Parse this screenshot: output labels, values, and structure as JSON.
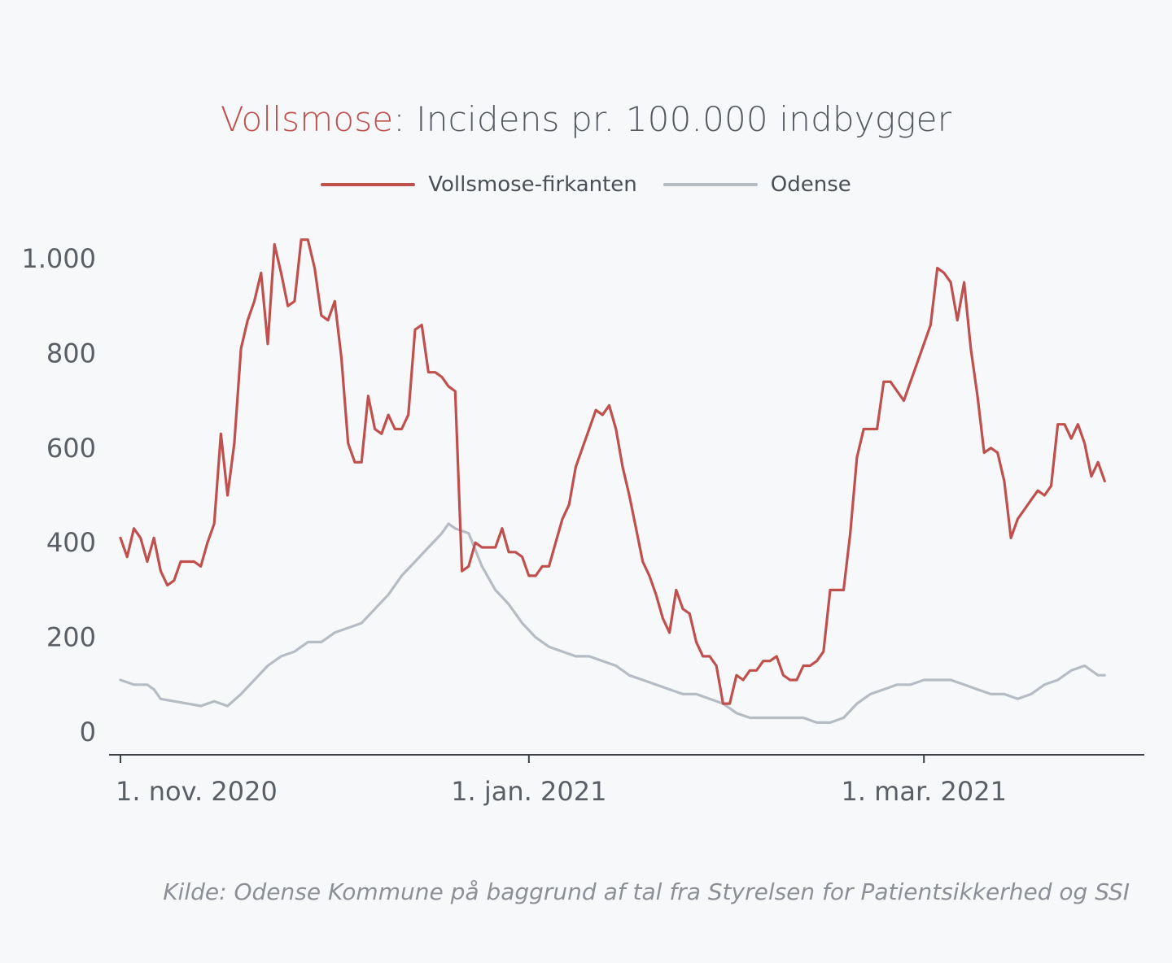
{
  "title": {
    "highlight": "Vollsmose",
    "rest": ": Incidens pr. 100.000 indbygger"
  },
  "legend": [
    {
      "label": "Vollsmose-firkanten",
      "color": "#c0504d"
    },
    {
      "label": "Odense",
      "color": "#b6bcc3"
    }
  ],
  "source": "Kilde: Odense Kommune på baggrund af tal fra Styrelsen for Patientsikkerhed og SSI",
  "colors": {
    "vollsmose": "#c0504d",
    "odense": "#b6bcc3",
    "axis": "#3c4048",
    "background": "#f7f8fa"
  },
  "chart_data": {
    "type": "line",
    "title": "Vollsmose: Incidens pr. 100.000 indbygger",
    "xlabel": "",
    "ylabel": "",
    "xlim": [
      0,
      150
    ],
    "ylim": [
      0,
      1040
    ],
    "grid": false,
    "legend_position": "top-center",
    "y_ticks": [
      {
        "value": 0,
        "label": "0"
      },
      {
        "value": 200,
        "label": "200"
      },
      {
        "value": 400,
        "label": "400"
      },
      {
        "value": 600,
        "label": "600"
      },
      {
        "value": 800,
        "label": "800"
      },
      {
        "value": 1000,
        "label": "1.000"
      }
    ],
    "x_ticks": [
      {
        "value": 0,
        "label": "1. nov. 2020"
      },
      {
        "value": 61,
        "label": "1. jan. 2021"
      },
      {
        "value": 120,
        "label": "1. mar. 2021"
      }
    ],
    "series": [
      {
        "name": "Vollsmose-firkanten",
        "color": "#c0504d",
        "points": [
          [
            0,
            410
          ],
          [
            1,
            370
          ],
          [
            2,
            430
          ],
          [
            3,
            410
          ],
          [
            4,
            360
          ],
          [
            5,
            410
          ],
          [
            6,
            340
          ],
          [
            7,
            310
          ],
          [
            8,
            320
          ],
          [
            9,
            360
          ],
          [
            10,
            360
          ],
          [
            11,
            360
          ],
          [
            12,
            350
          ],
          [
            13,
            400
          ],
          [
            14,
            440
          ],
          [
            15,
            630
          ],
          [
            16,
            500
          ],
          [
            17,
            610
          ],
          [
            18,
            810
          ],
          [
            19,
            870
          ],
          [
            20,
            910
          ],
          [
            21,
            970
          ],
          [
            22,
            820
          ],
          [
            23,
            1030
          ],
          [
            24,
            970
          ],
          [
            25,
            900
          ],
          [
            26,
            910
          ],
          [
            27,
            1040
          ],
          [
            28,
            1040
          ],
          [
            29,
            980
          ],
          [
            30,
            880
          ],
          [
            31,
            870
          ],
          [
            32,
            910
          ],
          [
            33,
            790
          ],
          [
            34,
            610
          ],
          [
            35,
            570
          ],
          [
            36,
            570
          ],
          [
            37,
            710
          ],
          [
            38,
            640
          ],
          [
            39,
            630
          ],
          [
            40,
            670
          ],
          [
            41,
            640
          ],
          [
            42,
            640
          ],
          [
            43,
            670
          ],
          [
            44,
            850
          ],
          [
            45,
            860
          ],
          [
            46,
            760
          ],
          [
            47,
            760
          ],
          [
            48,
            750
          ],
          [
            49,
            730
          ],
          [
            50,
            720
          ],
          [
            51,
            340
          ],
          [
            52,
            350
          ],
          [
            53,
            400
          ],
          [
            54,
            390
          ],
          [
            55,
            390
          ],
          [
            56,
            390
          ],
          [
            57,
            430
          ],
          [
            58,
            380
          ],
          [
            59,
            380
          ],
          [
            60,
            370
          ],
          [
            61,
            330
          ],
          [
            62,
            330
          ],
          [
            63,
            350
          ],
          [
            64,
            350
          ],
          [
            65,
            400
          ],
          [
            66,
            450
          ],
          [
            67,
            480
          ],
          [
            68,
            560
          ],
          [
            69,
            600
          ],
          [
            70,
            640
          ],
          [
            71,
            680
          ],
          [
            72,
            670
          ],
          [
            73,
            690
          ],
          [
            74,
            640
          ],
          [
            75,
            560
          ],
          [
            76,
            500
          ],
          [
            77,
            430
          ],
          [
            78,
            360
          ],
          [
            79,
            330
          ],
          [
            80,
            290
          ],
          [
            81,
            240
          ],
          [
            82,
            210
          ],
          [
            83,
            300
          ],
          [
            84,
            260
          ],
          [
            85,
            250
          ],
          [
            86,
            190
          ],
          [
            87,
            160
          ],
          [
            88,
            160
          ],
          [
            89,
            140
          ],
          [
            90,
            60
          ],
          [
            91,
            60
          ],
          [
            92,
            120
          ],
          [
            93,
            110
          ],
          [
            94,
            130
          ],
          [
            95,
            130
          ],
          [
            96,
            150
          ],
          [
            97,
            150
          ],
          [
            98,
            160
          ],
          [
            99,
            120
          ],
          [
            100,
            110
          ],
          [
            101,
            110
          ],
          [
            102,
            140
          ],
          [
            103,
            140
          ],
          [
            104,
            150
          ],
          [
            105,
            170
          ],
          [
            106,
            300
          ],
          [
            107,
            300
          ],
          [
            108,
            300
          ],
          [
            109,
            420
          ],
          [
            110,
            580
          ],
          [
            111,
            640
          ],
          [
            112,
            640
          ],
          [
            113,
            640
          ],
          [
            114,
            740
          ],
          [
            115,
            740
          ],
          [
            116,
            720
          ],
          [
            117,
            700
          ],
          [
            118,
            740
          ],
          [
            119,
            780
          ],
          [
            120,
            820
          ],
          [
            121,
            860
          ],
          [
            122,
            980
          ],
          [
            123,
            970
          ],
          [
            124,
            950
          ],
          [
            125,
            870
          ],
          [
            126,
            950
          ],
          [
            127,
            810
          ],
          [
            128,
            710
          ],
          [
            129,
            590
          ],
          [
            130,
            600
          ],
          [
            131,
            590
          ],
          [
            132,
            530
          ],
          [
            133,
            410
          ],
          [
            134,
            450
          ],
          [
            135,
            470
          ],
          [
            136,
            490
          ],
          [
            137,
            510
          ],
          [
            138,
            500
          ],
          [
            139,
            520
          ],
          [
            140,
            650
          ],
          [
            141,
            650
          ],
          [
            142,
            620
          ],
          [
            143,
            650
          ],
          [
            144,
            610
          ],
          [
            145,
            540
          ],
          [
            146,
            570
          ],
          [
            147,
            530
          ]
        ]
      },
      {
        "name": "Odense",
        "color": "#b6bcc3",
        "points": [
          [
            0,
            110
          ],
          [
            2,
            100
          ],
          [
            4,
            100
          ],
          [
            5,
            90
          ],
          [
            6,
            70
          ],
          [
            8,
            65
          ],
          [
            10,
            60
          ],
          [
            12,
            55
          ],
          [
            14,
            65
          ],
          [
            16,
            55
          ],
          [
            18,
            80
          ],
          [
            20,
            110
          ],
          [
            22,
            140
          ],
          [
            24,
            160
          ],
          [
            26,
            170
          ],
          [
            28,
            190
          ],
          [
            30,
            190
          ],
          [
            32,
            210
          ],
          [
            34,
            220
          ],
          [
            36,
            230
          ],
          [
            38,
            260
          ],
          [
            40,
            290
          ],
          [
            42,
            330
          ],
          [
            44,
            360
          ],
          [
            46,
            390
          ],
          [
            48,
            420
          ],
          [
            49,
            440
          ],
          [
            50,
            430
          ],
          [
            52,
            420
          ],
          [
            54,
            350
          ],
          [
            56,
            300
          ],
          [
            58,
            270
          ],
          [
            60,
            230
          ],
          [
            62,
            200
          ],
          [
            64,
            180
          ],
          [
            66,
            170
          ],
          [
            68,
            160
          ],
          [
            70,
            160
          ],
          [
            72,
            150
          ],
          [
            74,
            140
          ],
          [
            76,
            120
          ],
          [
            78,
            110
          ],
          [
            80,
            100
          ],
          [
            82,
            90
          ],
          [
            84,
            80
          ],
          [
            86,
            80
          ],
          [
            88,
            70
          ],
          [
            90,
            60
          ],
          [
            92,
            40
          ],
          [
            94,
            30
          ],
          [
            96,
            30
          ],
          [
            98,
            30
          ],
          [
            100,
            30
          ],
          [
            102,
            30
          ],
          [
            104,
            20
          ],
          [
            106,
            20
          ],
          [
            108,
            30
          ],
          [
            110,
            60
          ],
          [
            112,
            80
          ],
          [
            114,
            90
          ],
          [
            116,
            100
          ],
          [
            118,
            100
          ],
          [
            120,
            110
          ],
          [
            122,
            110
          ],
          [
            124,
            110
          ],
          [
            126,
            100
          ],
          [
            128,
            90
          ],
          [
            130,
            80
          ],
          [
            132,
            80
          ],
          [
            134,
            70
          ],
          [
            136,
            80
          ],
          [
            138,
            100
          ],
          [
            140,
            110
          ],
          [
            142,
            130
          ],
          [
            144,
            140
          ],
          [
            146,
            120
          ],
          [
            147,
            120
          ]
        ]
      }
    ]
  }
}
